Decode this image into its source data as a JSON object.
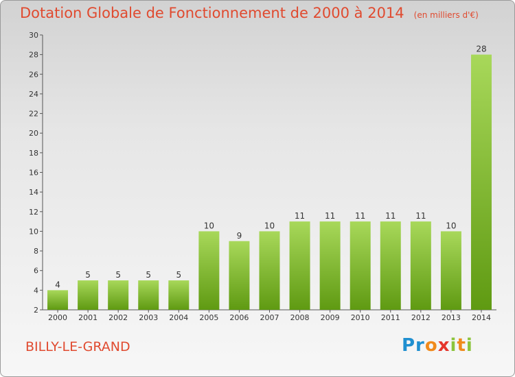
{
  "header": {
    "title": "Dotation Globale de Fonctionnement de 2000 à 2014",
    "subtitle": "(en milliers d'€)"
  },
  "footer": {
    "town": "BILLY-LE-GRAND",
    "logo": "Proxiti"
  },
  "colors": {
    "title": "#e04a2f",
    "bar_light": "#a8d85a",
    "bar_dark": "#5f9a12"
  },
  "chart_data": {
    "type": "bar",
    "title": "Dotation Globale de Fonctionnement de 2000 à 2014",
    "subtitle": "(en milliers d'€)",
    "xlabel": "",
    "ylabel": "",
    "categories": [
      "2000",
      "2001",
      "2002",
      "2003",
      "2004",
      "2005",
      "2006",
      "2007",
      "2008",
      "2009",
      "2010",
      "2011",
      "2012",
      "2013",
      "2014"
    ],
    "values": [
      4,
      5,
      5,
      5,
      5,
      10,
      9,
      10,
      11,
      11,
      11,
      11,
      11,
      10,
      28
    ],
    "ylim": [
      2,
      30
    ],
    "yticks": [
      2,
      4,
      6,
      8,
      10,
      12,
      14,
      16,
      18,
      20,
      22,
      24,
      26,
      28,
      30
    ],
    "grid": false,
    "legend": "none"
  }
}
